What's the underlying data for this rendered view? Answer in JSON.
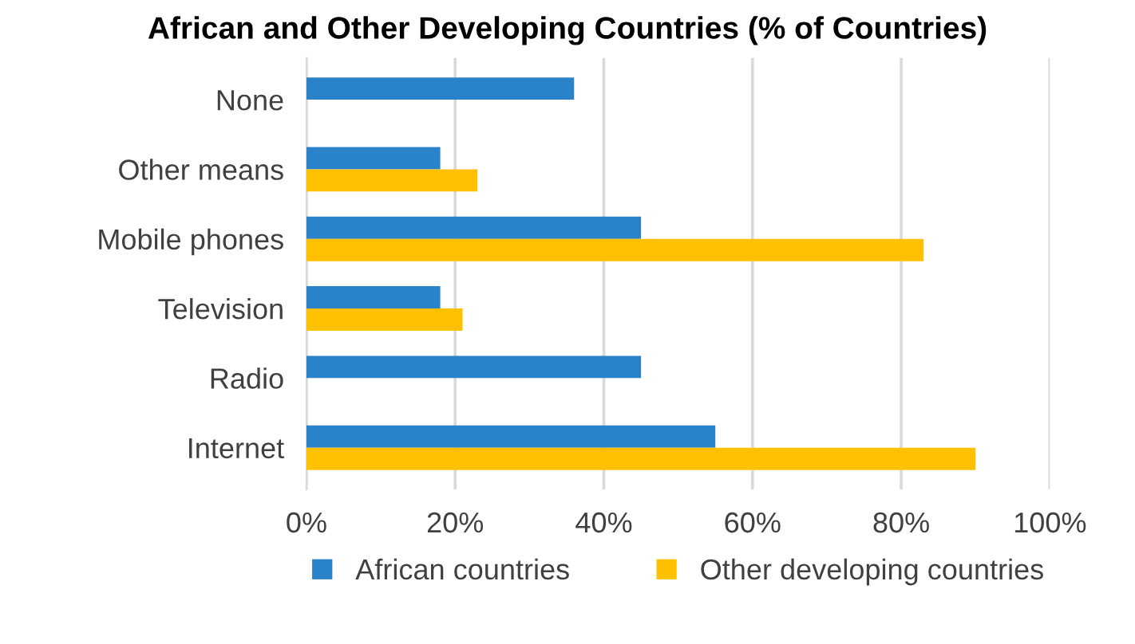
{
  "chart_data": {
    "type": "bar",
    "orientation": "horizontal",
    "title": "African and Other Developing Countries (% of Countries)",
    "categories": [
      "None",
      "Other means",
      "Mobile phones",
      "Television",
      "Radio",
      "Internet"
    ],
    "series": [
      {
        "name": "African countries",
        "color": "#2a82c8",
        "values": [
          36,
          18,
          45,
          18,
          45,
          55
        ]
      },
      {
        "name": "Other developing countries",
        "color": "#ffc000",
        "values": [
          null,
          23,
          83,
          21,
          null,
          90
        ]
      }
    ],
    "xlim": [
      0,
      100
    ],
    "xticks": [
      {
        "value": 0,
        "label": "0%"
      },
      {
        "value": 20,
        "label": "20%"
      },
      {
        "value": 40,
        "label": "40%"
      },
      {
        "value": 60,
        "label": "60%"
      },
      {
        "value": 80,
        "label": "80%"
      },
      {
        "value": 100,
        "label": "100%"
      }
    ],
    "grid": "x",
    "legend": "bottom"
  }
}
